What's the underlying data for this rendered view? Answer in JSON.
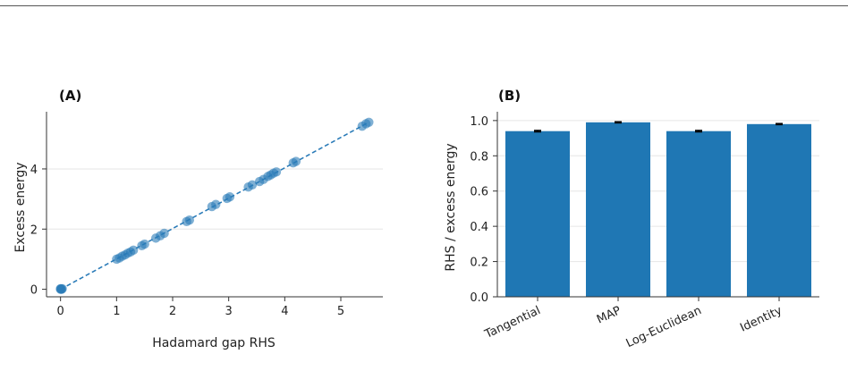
{
  "chart_data": [
    {
      "type": "scatter",
      "panel_label": "(A)",
      "xlabel": "Hadamard gap RHS",
      "ylabel": "Excess energy",
      "xlim": [
        -0.25,
        5.75
      ],
      "ylim": [
        -0.25,
        5.9
      ],
      "xticks": [
        0,
        1,
        2,
        3,
        4,
        5
      ],
      "yticks": [
        0,
        2,
        4
      ],
      "grid": "horizontal",
      "color": "#2a7bb8",
      "reference_line": {
        "style": "dashed",
        "color": "#2a7bb8",
        "x": [
          0,
          5.5
        ],
        "y": [
          0,
          5.55
        ]
      },
      "series": [
        {
          "points": [
            [
              0.0,
              0.0
            ],
            [
              0.01,
              0.01
            ],
            [
              0.02,
              0.0
            ],
            [
              0.0,
              0.02
            ],
            [
              0.03,
              0.02
            ],
            [
              1.0,
              1.0
            ],
            [
              1.05,
              1.04
            ],
            [
              1.1,
              1.1
            ],
            [
              1.15,
              1.14
            ],
            [
              1.2,
              1.2
            ],
            [
              1.25,
              1.24
            ],
            [
              1.3,
              1.3
            ],
            [
              1.45,
              1.45
            ],
            [
              1.5,
              1.5
            ],
            [
              1.7,
              1.7
            ],
            [
              1.78,
              1.78
            ],
            [
              1.85,
              1.86
            ],
            [
              2.25,
              2.25
            ],
            [
              2.3,
              2.3
            ],
            [
              2.7,
              2.75
            ],
            [
              2.77,
              2.82
            ],
            [
              2.97,
              3.02
            ],
            [
              3.02,
              3.07
            ],
            [
              3.35,
              3.4
            ],
            [
              3.42,
              3.47
            ],
            [
              3.55,
              3.58
            ],
            [
              3.62,
              3.65
            ],
            [
              3.7,
              3.75
            ],
            [
              3.75,
              3.8
            ],
            [
              3.8,
              3.86
            ],
            [
              3.85,
              3.9
            ],
            [
              4.15,
              4.2
            ],
            [
              4.2,
              4.25
            ],
            [
              5.38,
              5.42
            ],
            [
              5.45,
              5.5
            ],
            [
              5.5,
              5.55
            ]
          ]
        }
      ]
    },
    {
      "type": "bar",
      "panel_label": "(B)",
      "xlabel": "",
      "ylabel": "RHS / excess energy",
      "categories": [
        "Tangential",
        "MAP",
        "Log-Euclidean",
        "Identity"
      ],
      "values": [
        0.94,
        0.99,
        0.94,
        0.98
      ],
      "errors": [
        0.004,
        0.003,
        0.004,
        0.003
      ],
      "ylim": [
        0.0,
        1.05
      ],
      "yticks": [
        0.0,
        0.2,
        0.4,
        0.6,
        0.8,
        1.0
      ],
      "grid": "horizontal",
      "color": "#1f77b4"
    }
  ]
}
